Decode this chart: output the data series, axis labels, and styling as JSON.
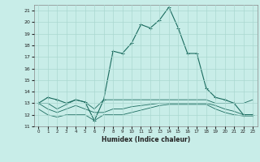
{
  "xlabel": "Humidex (Indice chaleur)",
  "xlim": [
    -0.5,
    23.5
  ],
  "ylim": [
    11,
    21.5
  ],
  "yticks": [
    11,
    12,
    13,
    14,
    15,
    16,
    17,
    18,
    19,
    20,
    21
  ],
  "xticks": [
    0,
    1,
    2,
    3,
    4,
    5,
    6,
    7,
    8,
    9,
    10,
    11,
    12,
    13,
    14,
    15,
    16,
    17,
    18,
    19,
    20,
    21,
    22,
    23
  ],
  "bg_color": "#c8ede8",
  "grid_color": "#aad8d0",
  "line_color": "#1a6b5e",
  "series1": {
    "x": [
      0,
      1,
      2,
      3,
      4,
      5,
      6,
      7,
      8,
      9,
      10,
      11,
      12,
      13,
      14,
      15,
      16,
      17,
      18,
      19,
      20,
      21,
      22,
      23
    ],
    "y": [
      13.0,
      13.5,
      13.3,
      13.0,
      13.3,
      13.1,
      11.5,
      13.3,
      17.5,
      17.3,
      18.2,
      19.8,
      19.5,
      20.2,
      21.3,
      19.5,
      17.3,
      17.3,
      14.3,
      13.5,
      13.3,
      13.0,
      12.0,
      12.0
    ]
  },
  "series2": {
    "x": [
      0,
      1,
      2,
      3,
      4,
      5,
      6,
      7,
      8,
      9,
      10,
      11,
      12,
      13,
      14,
      15,
      16,
      17,
      18,
      19,
      20,
      21,
      22,
      23
    ],
    "y": [
      13.0,
      13.0,
      12.5,
      12.9,
      13.3,
      13.1,
      12.5,
      13.3,
      13.3,
      13.3,
      13.3,
      13.3,
      13.3,
      13.3,
      13.3,
      13.3,
      13.3,
      13.3,
      13.3,
      13.0,
      13.0,
      13.0,
      13.0,
      13.3
    ]
  },
  "series3": {
    "x": [
      0,
      1,
      2,
      3,
      4,
      5,
      6,
      7,
      8,
      9,
      10,
      11,
      12,
      13,
      14,
      15,
      16,
      17,
      18,
      19,
      20,
      21,
      22,
      23
    ],
    "y": [
      13.0,
      12.5,
      12.2,
      12.5,
      12.8,
      12.5,
      12.2,
      12.2,
      12.5,
      12.5,
      12.7,
      12.8,
      12.9,
      13.0,
      13.0,
      13.0,
      13.0,
      13.0,
      13.0,
      12.8,
      12.5,
      12.3,
      12.0,
      12.0
    ]
  },
  "series4": {
    "x": [
      0,
      1,
      2,
      3,
      4,
      5,
      6,
      7,
      8,
      9,
      10,
      11,
      12,
      13,
      14,
      15,
      16,
      17,
      18,
      19,
      20,
      21,
      22,
      23
    ],
    "y": [
      12.5,
      12.0,
      11.8,
      12.0,
      12.0,
      12.0,
      11.5,
      12.0,
      12.0,
      12.0,
      12.2,
      12.4,
      12.6,
      12.8,
      12.9,
      12.9,
      12.9,
      12.9,
      12.9,
      12.5,
      12.2,
      12.0,
      11.9,
      11.9
    ]
  }
}
